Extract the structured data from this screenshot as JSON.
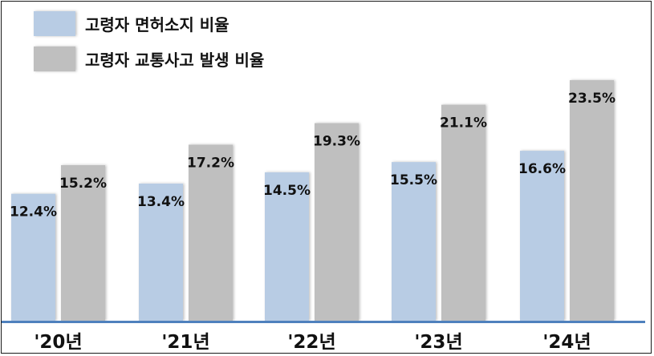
{
  "chart_data": {
    "type": "bar",
    "categories": [
      "'20년",
      "'21년",
      "'22년",
      "'23년",
      "'24년"
    ],
    "series": [
      {
        "name": "고령자 면허소지 비율",
        "values": [
          12.4,
          13.4,
          14.5,
          15.5,
          16.6
        ],
        "labels": [
          "12.4%",
          "13.4%",
          "14.5%",
          "15.5%",
          "16.6%"
        ],
        "color": "#b8cce4"
      },
      {
        "name": "고령자 교통사고 발생 비율",
        "values": [
          15.2,
          17.2,
          19.3,
          21.1,
          23.5
        ],
        "labels": [
          "15.2%",
          "17.2%",
          "19.3%",
          "21.1%",
          "23.5%"
        ],
        "color": "#bfbfbf"
      }
    ],
    "ylim": [
      0,
      25
    ],
    "legend_position": "top-left",
    "axis_color": "#4f81bd",
    "grid": false
  }
}
